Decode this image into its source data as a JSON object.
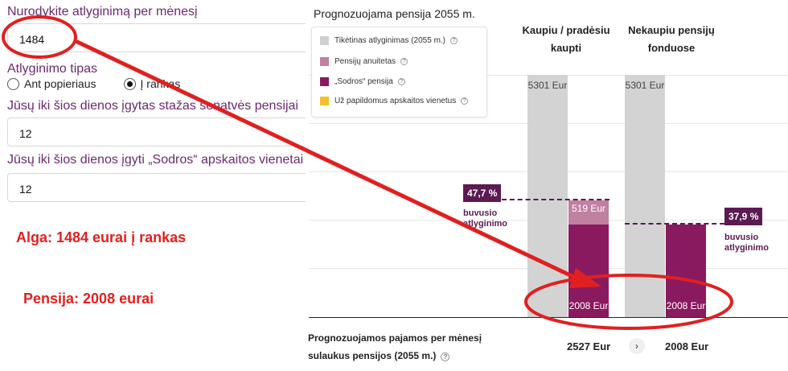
{
  "form": {
    "salary_label": "Nurodykite atlyginimą per mėnesį",
    "salary_value": "1484",
    "salary_type_label": "Atlyginimo tipas",
    "radio_gross": "Ant popieriaus",
    "radio_net": "Į rankas",
    "radio_selected": "net",
    "seniority_label": "Jūsų iki šios dienos įgytas stažas senatvės pensijai",
    "seniority_value": "12",
    "units_label": "Jūsų iki šios dienos įgyti „Sodros“ apskaitos vienetai senatvės pensijai",
    "units_value": "12"
  },
  "annotations": {
    "salary_note": "Alga: 1484 eurai į rankas",
    "pension_note": "Pensija: 2008 eurai"
  },
  "chart": {
    "title": "Prognozuojama pensija 2055 m.",
    "legend": [
      {
        "label": "Tikėtinas atlyginimas (2055 m.)",
        "color": "#cfcfcf"
      },
      {
        "label": "Pensijų anuitetas",
        "color": "#c0809f"
      },
      {
        "label": "„Sodros“ pensija",
        "color": "#8a1a5f"
      },
      {
        "label": "Už papildomus apskaitos vienetus",
        "color": "#f2c12e"
      }
    ],
    "columns": [
      {
        "header": "Kaupiu / pradėsiu kaupti",
        "header_l1": "Kaupiu / pradėsiu",
        "header_l2": "kaupti",
        "salary": "5301 Eur",
        "annuity": "519 Eur",
        "sodra": "2008 Eur",
        "pct": "47,7 %",
        "pct_note_l1": "buvusio",
        "pct_note_l2": "atlyginimo",
        "total": "2527 Eur"
      },
      {
        "header": "Nekaupiu pensijų fonduose",
        "header_l1": "Nekaupiu pensijų",
        "header_l2": "fonduose",
        "salary": "5301 Eur",
        "sodra": "2008 Eur",
        "pct": "37,9 %",
        "pct_note_l1": "buvusio",
        "pct_note_l2": "atlyginimo",
        "total": "2008 Eur"
      }
    ],
    "bottom_label_l1": "Prognozuojamos pajamos per mėnesį",
    "bottom_label_l2": "sulaukus pensijos (2055 m.)",
    "compare_icon": "chevron-right-icon"
  },
  "overlay": {
    "color": "#e02020",
    "shapes": [
      "red-ellipse-salary",
      "red-arrow",
      "red-ellipse-pension"
    ]
  },
  "chart_data": {
    "type": "bar",
    "title": "Prognozuojama pensija 2055 m.",
    "categories": [
      "Kaupiu / pradėsiu kaupti",
      "Nekaupiu pensijų fonduose"
    ],
    "series": [
      {
        "name": "Tikėtinas atlyginimas (2055 m.)",
        "values": [
          5301,
          5301
        ]
      },
      {
        "name": "Pensijų anuitetas",
        "values": [
          519,
          0
        ]
      },
      {
        "name": "„Sodros“ pensija",
        "values": [
          2008,
          2008
        ]
      },
      {
        "name": "Už papildomus apskaitos vienetus",
        "values": [
          0,
          0
        ]
      }
    ],
    "replacement_rate_pct": [
      47.7,
      37.9
    ],
    "totals": [
      2527,
      2008
    ],
    "legend": "top-left",
    "grid": true
  }
}
